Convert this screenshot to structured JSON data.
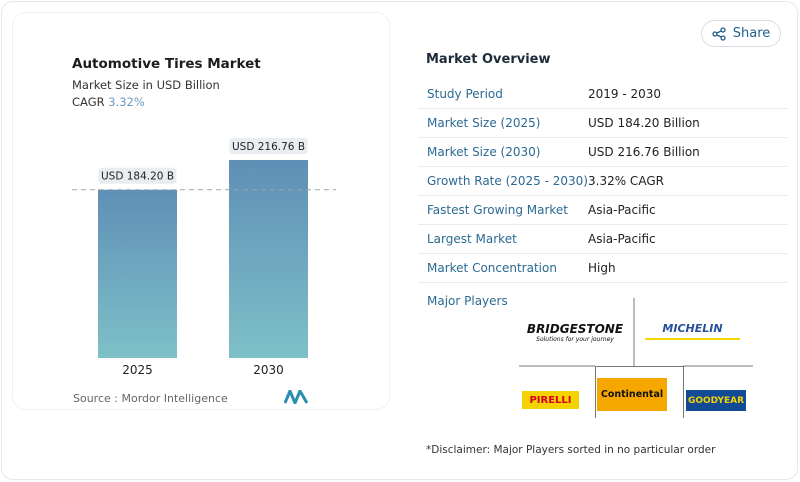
{
  "share_label": "Share",
  "chart_data": {
    "type": "bar",
    "title": "Automotive Tires Market",
    "subtitle": "Market Size in USD Billion",
    "cagr_label": "CAGR",
    "cagr_value": "3.32%",
    "categories": [
      "2025",
      "2030"
    ],
    "values": [
      184.2,
      216.76
    ],
    "data_labels": [
      "USD 184.20 B",
      "USD 216.76 B"
    ],
    "ylim": [
      0,
      216.76
    ],
    "reference_line": 184.2,
    "colors": {
      "top": "#5f8fb6",
      "bottom": "#7ec0c8"
    },
    "source": "Source :  Mordor Intelligence"
  },
  "overview": {
    "title": "Market Overview",
    "rows": [
      {
        "k": "Study Period",
        "v": "2019 - 2030"
      },
      {
        "k": "Market Size (2025)",
        "v": "USD 184.20 Billion"
      },
      {
        "k": "Market Size (2030)",
        "v": "USD 216.76 Billion"
      },
      {
        "k": "Growth Rate (2025 - 2030)",
        "v": "3.32% CAGR"
      },
      {
        "k": "Fastest Growing Market",
        "v": "Asia-Pacific"
      },
      {
        "k": "Largest Market",
        "v": "Asia-Pacific"
      },
      {
        "k": "Market Concentration",
        "v": "High"
      }
    ],
    "major_players_label": "Major Players",
    "players": [
      "Bridgestone",
      "Michelin",
      "Pirelli",
      "Continental",
      "Goodyear"
    ],
    "disclaimer": "*Disclaimer: Major Players sorted in no particular order"
  }
}
